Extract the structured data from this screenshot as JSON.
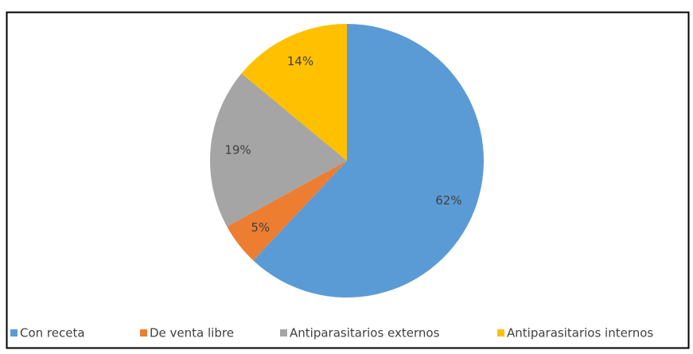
{
  "chart_data": {
    "type": "pie",
    "categories": [
      "Con receta",
      "De venta libre",
      "Antiparasitarios externos",
      "Antiparasitarios internos"
    ],
    "values": [
      62,
      5,
      19,
      14
    ],
    "value_labels": [
      "62%",
      "5%",
      "19%",
      "14%"
    ],
    "colors": [
      "#5b9bd5",
      "#ed7d31",
      "#a5a5a5",
      "#ffc000"
    ],
    "legend": "bottom"
  }
}
